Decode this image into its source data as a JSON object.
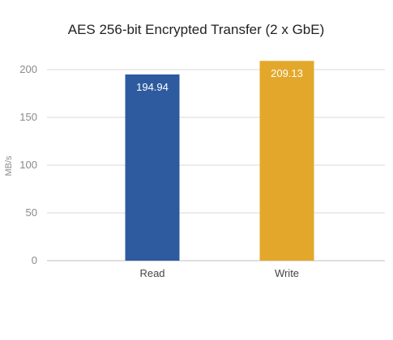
{
  "chart_data": {
    "type": "bar",
    "title": "AES 256-bit Encrypted Transfer (2 x GbE)",
    "xlabel": "",
    "ylabel": "MB/s",
    "categories": [
      "Read",
      "Write"
    ],
    "values": [
      194.94,
      209.13
    ],
    "data_labels": [
      "194.94",
      "209.13"
    ],
    "colors": [
      "#2e5b9f",
      "#e3a82b"
    ],
    "ylim": [
      0,
      210
    ],
    "yticks": [
      0,
      50,
      100,
      150,
      200
    ],
    "ytick_labels": [
      "0",
      "50",
      "100",
      "150",
      "200"
    ],
    "grid": true,
    "legend": "none"
  }
}
